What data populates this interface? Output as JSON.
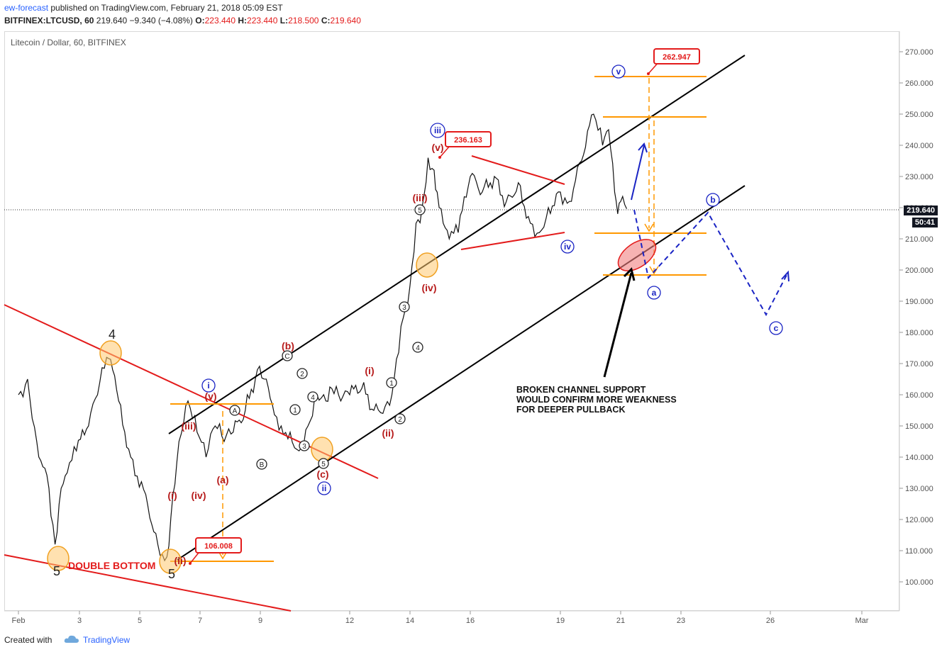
{
  "header": {
    "author": "ew-forecast",
    "published_text": "published on TradingView.com, February 21, 2018 05:09 EST",
    "symbol": "BITFINEX:LTCUSD, 60",
    "last": "219.640",
    "change": "−9.340 (−4.08%)",
    "open_label": "O:",
    "open": "223.440",
    "high_label": "H:",
    "high": "223.440",
    "low_label": "L:",
    "low": "218.500",
    "close_label": "C:",
    "close": "219.640"
  },
  "chart_title": "Litecoin / Dollar, 60, BITFINEX",
  "price_label": "219.640",
  "countdown_label": "50:41",
  "footer": {
    "created_with": "Created with",
    "brand": "TradingView"
  },
  "colors": {
    "red": "#e31b1b",
    "orange": "#ff9800",
    "blue": "#1a24c4",
    "dark_red": "#b71c1c",
    "black": "#000000"
  },
  "chart_data": {
    "type": "line",
    "title": "Litecoin / Dollar, 60, BITFINEX",
    "x_ticks": [
      "Feb",
      "3",
      "5",
      "7",
      "9",
      "12",
      "14",
      "16",
      "19",
      "21",
      "23",
      "26",
      "Mar"
    ],
    "y_ticks": [
      "100.000",
      "110.000",
      "120.000",
      "130.000",
      "140.000",
      "150.000",
      "160.000",
      "170.000",
      "180.000",
      "190.000",
      "200.000",
      "210.000",
      "220.000",
      "230.000",
      "240.000",
      "250.000",
      "260.000",
      "270.000"
    ],
    "ylim": [
      90,
      275
    ],
    "series": [
      {
        "x": [
          1.0,
          1.3,
          1.6,
          2.0,
          2.2,
          2.4,
          2.6,
          2.9,
          3.3,
          3.6,
          3.9,
          4.1,
          4.3,
          4.7,
          5.2,
          5.6,
          5.9,
          6.1,
          6.3,
          6.6,
          6.9,
          7.2,
          7.5,
          7.8,
          8.1,
          8.5,
          8.9,
          9.2,
          9.4,
          9.7,
          10.0,
          10.3,
          10.6,
          10.9,
          11.2,
          11.4,
          11.7,
          12.0,
          12.4,
          12.8,
          13.1,
          13.4,
          13.7,
          14.0,
          14.2,
          14.4,
          14.6,
          14.8,
          14.9,
          15.1,
          15.3,
          15.6,
          16.0,
          16.4,
          16.8,
          17.2,
          17.6,
          18.0,
          18.3,
          18.6,
          19.0,
          19.3,
          19.7,
          20.1,
          20.4,
          20.6,
          20.8,
          20.9,
          21.0,
          21.2
        ],
        "values": [
          160,
          165,
          145,
          130,
          112,
          130,
          135,
          142,
          150,
          160,
          172,
          168,
          158,
          140,
          128,
          112,
          108,
          128,
          145,
          158,
          148,
          140,
          150,
          145,
          148,
          155,
          168,
          165,
          157,
          150,
          148,
          142,
          150,
          160,
          158,
          162,
          158,
          160,
          162,
          155,
          154,
          160,
          182,
          195,
          215,
          220,
          236,
          232,
          225,
          215,
          210,
          212,
          230,
          225,
          230,
          222,
          228,
          215,
          212,
          220,
          225,
          222,
          235,
          250,
          240,
          245,
          225,
          218,
          222,
          219.64
        ]
      }
    ],
    "annotations": {
      "wave_counts": [
        "4",
        "5",
        "5",
        "i",
        "ii",
        "iii",
        "iv",
        "v",
        "(i)",
        "(ii)",
        "(iii)",
        "(iv)",
        "(v)",
        "(a)",
        "(b)",
        "(c)",
        "A",
        "B",
        "C",
        "1",
        "2",
        "3",
        "4",
        "5",
        "a",
        "b",
        "c"
      ],
      "price_labels": [
        "262.947",
        "236.163",
        "106.008"
      ],
      "text_notes": [
        "DOUBLE BOTTOM",
        "BROKEN CHANNEL SUPPORT",
        "WOULD CONFIRM MORE WEAKNESS",
        "FOR DEEPER PULLBACK"
      ]
    }
  },
  "labels": {
    "w4": "4",
    "w5a": "5",
    "w5b": "5",
    "wi": "i",
    "wii": "ii",
    "wiii": "iii",
    "wiv": "iv",
    "wv": "v",
    "pi_a": "(i)",
    "pii_a": "(ii)",
    "piii_a": "(iii)",
    "piv_a": "(iv)",
    "pv_a": "(v)",
    "pa": "(a)",
    "pb": "(b)",
    "pc": "(c)",
    "pi_b": "(i)",
    "pii_b": "(ii)",
    "piii_b": "(iii)",
    "piv_b": "(iv)",
    "pv_b": "(v)",
    "cA": "A",
    "cB": "B",
    "cC": "C",
    "n1a": "1",
    "n2a": "2",
    "n3a": "3",
    "n4a": "4",
    "n5a": "5",
    "n1b": "1",
    "n2b": "2",
    "n3b": "3",
    "n4b": "4",
    "n5b": "5",
    "ba": "a",
    "bb": "b",
    "bc": "c",
    "price_262": "262.947",
    "price_236": "236.163",
    "price_106": "106.008",
    "double_bottom": "DOUBLE BOTTOM",
    "note_line1": "BROKEN CHANNEL SUPPORT",
    "note_line2": "WOULD CONFIRM MORE WEAKNESS",
    "note_line3": "FOR DEEPER PULLBACK"
  }
}
